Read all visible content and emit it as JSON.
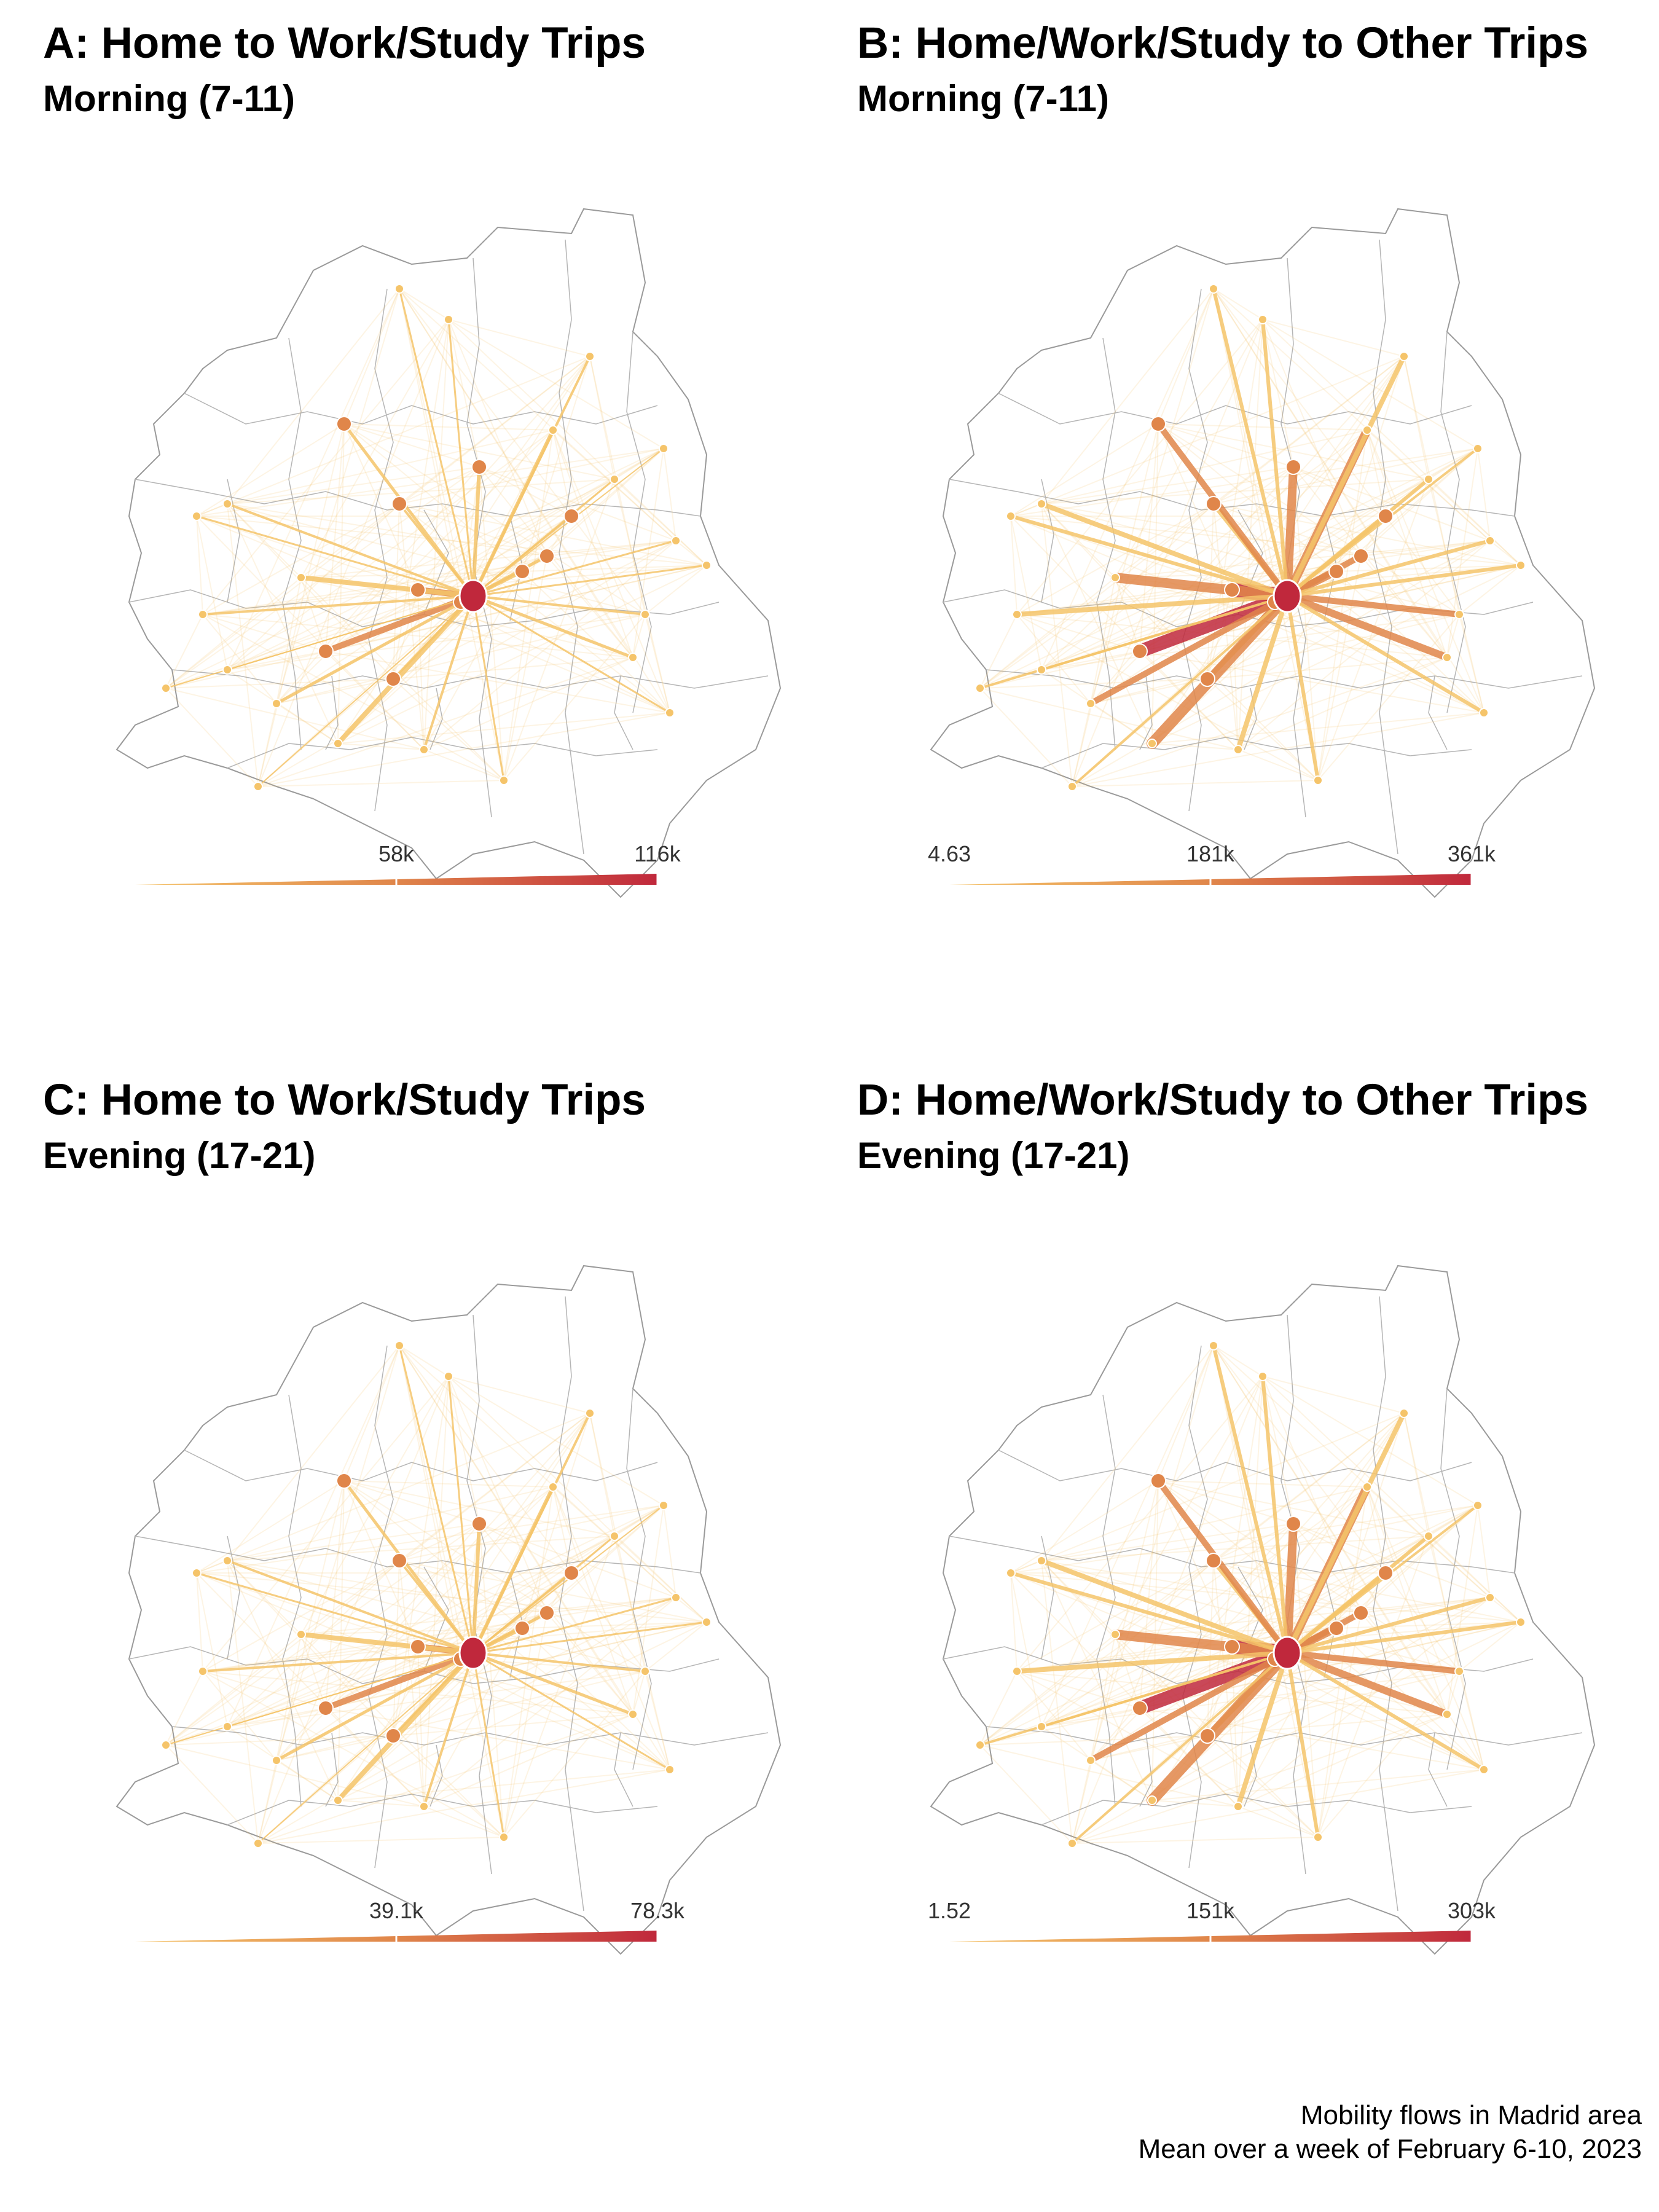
{
  "panels": [
    {
      "id": "A",
      "title": "A: Home to Work/Study Trips",
      "subtitle": "Morning (7-11)",
      "legend": {
        "ticks": [
          {
            "label": "58k",
            "frac": 0.5
          },
          {
            "label": "116k",
            "frac": 1.0
          }
        ]
      }
    },
    {
      "id": "B",
      "title": "B: Home/Work/Study to Other Trips",
      "subtitle": "Morning (7-11)",
      "legend": {
        "ticks": [
          {
            "label": "4.63",
            "frac": 0.0
          },
          {
            "label": "181k",
            "frac": 0.5
          },
          {
            "label": "361k",
            "frac": 1.0
          }
        ]
      }
    },
    {
      "id": "C",
      "title": "C: Home to Work/Study Trips",
      "subtitle": "Evening (17-21)",
      "legend": {
        "ticks": [
          {
            "label": "39.1k",
            "frac": 0.5
          },
          {
            "label": "78.3k",
            "frac": 1.0
          }
        ]
      }
    },
    {
      "id": "D",
      "title": "D: Home/Work/Study to Other Trips",
      "subtitle": "Evening (17-21)",
      "legend": {
        "ticks": [
          {
            "label": "1.52",
            "frac": 0.0
          },
          {
            "label": "151k",
            "frac": 0.5
          },
          {
            "label": "303k",
            "frac": 1.0
          }
        ]
      }
    }
  ],
  "caption": {
    "line1": "Mobility flows in Madrid area",
    "line2": "Mean over a week of February 6-10, 2023"
  },
  "colors": {
    "low": "#f5c46a",
    "mid": "#e0864a",
    "high": "#c0283c",
    "boundary": "#9a9a9a"
  }
}
